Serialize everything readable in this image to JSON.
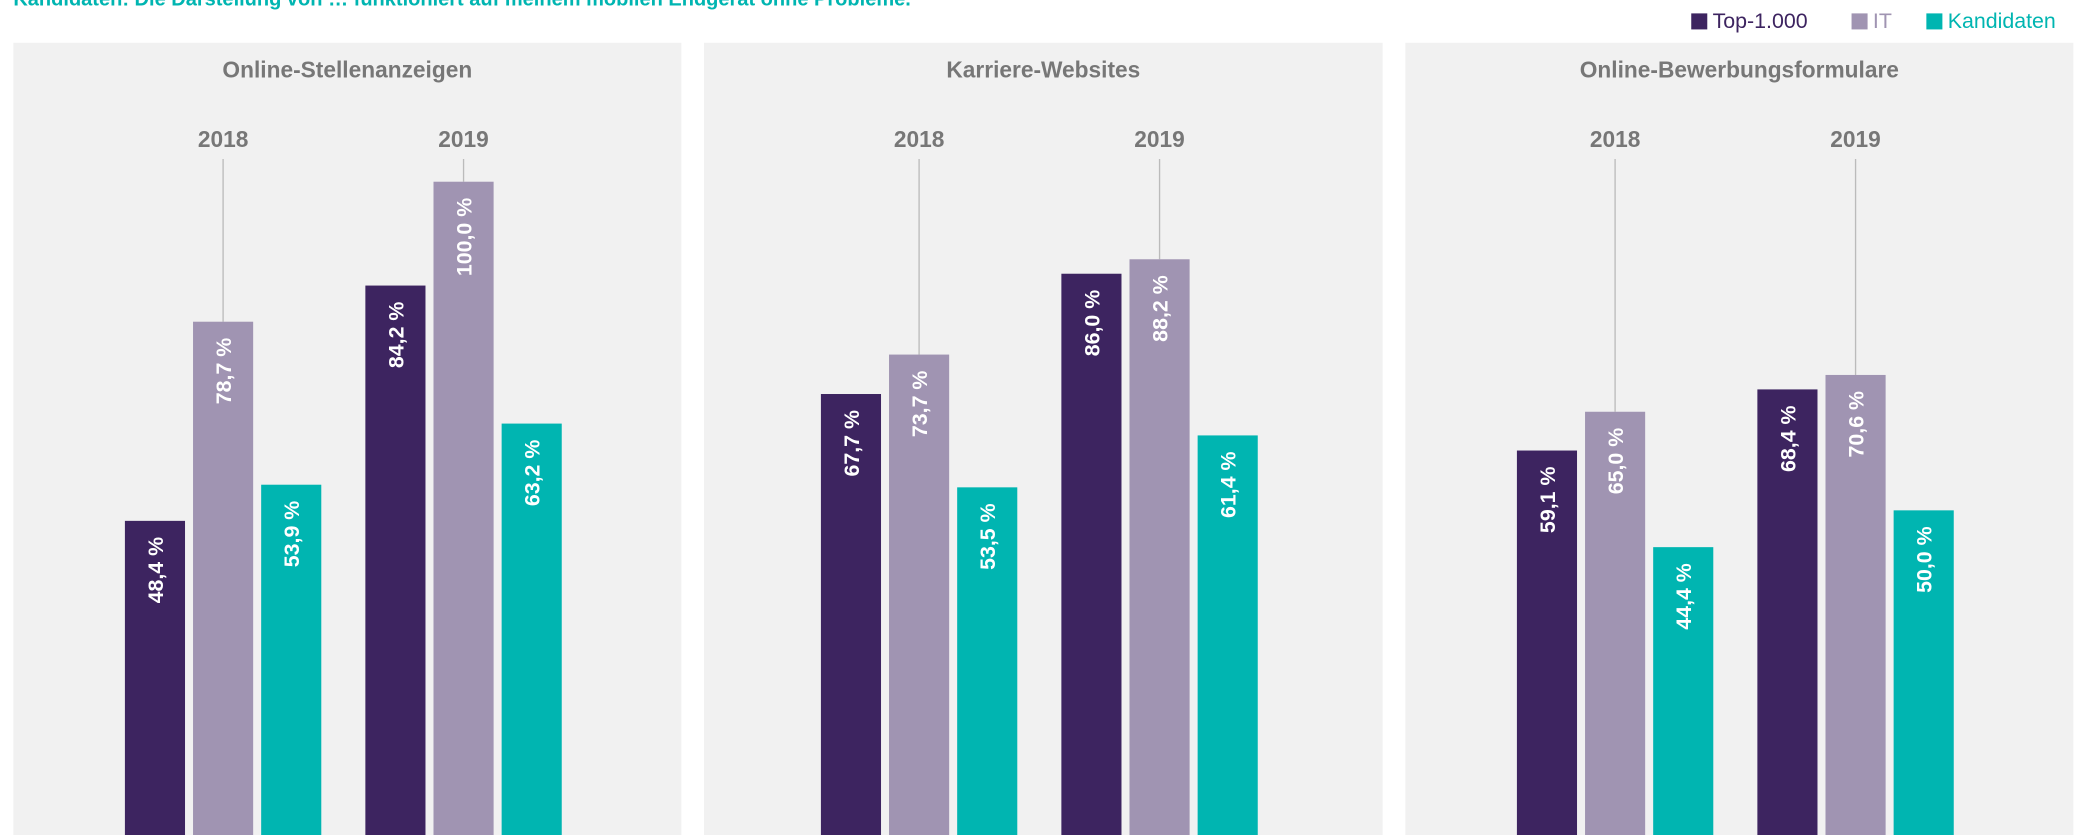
{
  "note": "Kandidaten: Die Darstellung von … funktioniert auf meinem mobilen Endgerät ohne Probleme.",
  "chart_data": [
    {
      "type": "bar",
      "title": "Online-Stellenanzeigen",
      "categories": [
        "2018",
        "2019"
      ],
      "series": [
        {
          "name": "Top-1.000",
          "color": "#3d2460",
          "values": [
            48.4,
            84.2
          ],
          "value_labels": [
            "48,4 %",
            "84,2 %"
          ]
        },
        {
          "name": "IT",
          "color": "#a094b2",
          "values": [
            78.7,
            100.0
          ],
          "value_labels": [
            "78,7 %",
            "100,0 %"
          ]
        },
        {
          "name": "Kandidaten",
          "color": "#00b5b1",
          "values": [
            53.9,
            63.2
          ],
          "value_labels": [
            "53,9 %",
            "63,2 %"
          ]
        }
      ]
    },
    {
      "type": "bar",
      "title": "Karriere-Websites",
      "categories": [
        "2018",
        "2019"
      ],
      "series": [
        {
          "name": "Top-1.000",
          "color": "#3d2460",
          "values": [
            67.7,
            86.0
          ],
          "value_labels": [
            "67,7 %",
            "86,0 %"
          ]
        },
        {
          "name": "IT",
          "color": "#a094b2",
          "values": [
            73.7,
            88.2
          ],
          "value_labels": [
            "73,7 %",
            "88,2 %"
          ]
        },
        {
          "name": "Kandidaten",
          "color": "#00b5b1",
          "values": [
            53.5,
            61.4
          ],
          "value_labels": [
            "53,5 %",
            "61,4 %"
          ]
        }
      ]
    },
    {
      "type": "bar",
      "title": "Online-Bewerbungsformulare",
      "categories": [
        "2018",
        "2019"
      ],
      "series": [
        {
          "name": "Top-1.000",
          "color": "#3d2460",
          "values": [
            59.1,
            68.4
          ],
          "value_labels": [
            "59,1 %",
            "68,4 %"
          ]
        },
        {
          "name": "IT",
          "color": "#a094b2",
          "values": [
            65.0,
            70.6
          ],
          "value_labels": [
            "65,0 %",
            "70,6 %"
          ]
        },
        {
          "name": "Kandidaten",
          "color": "#00b5b1",
          "values": [
            44.4,
            50.0
          ],
          "value_labels": [
            "44,4 %",
            "50,0 %"
          ]
        }
      ]
    }
  ]
}
